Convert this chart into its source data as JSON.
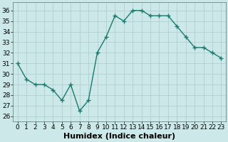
{
  "x": [
    0,
    1,
    2,
    3,
    4,
    5,
    6,
    7,
    8,
    9,
    10,
    11,
    12,
    13,
    14,
    15,
    16,
    17,
    18,
    19,
    20,
    21,
    22,
    23
  ],
  "y": [
    31.0,
    29.5,
    29.0,
    29.0,
    28.5,
    27.5,
    29.0,
    26.5,
    27.5,
    32.0,
    33.5,
    35.5,
    35.0,
    36.0,
    36.0,
    35.5,
    35.5,
    35.5,
    34.5,
    33.5,
    32.5,
    32.5,
    32.0,
    31.5
  ],
  "line_color": "#1a7a6e",
  "marker": "+",
  "marker_size": 4,
  "marker_linewidth": 1.0,
  "xlabel": "Humidex (Indice chaleur)",
  "xlabel_fontsize": 8,
  "ylabel_ticks": [
    26,
    27,
    28,
    29,
    30,
    31,
    32,
    33,
    34,
    35,
    36
  ],
  "ylim": [
    25.5,
    36.8
  ],
  "xlim": [
    -0.5,
    23.5
  ],
  "background_color": "#cce8e8",
  "grid_color": "#b0d0d0",
  "tick_fontsize": 6.5,
  "linewidth": 1.0
}
